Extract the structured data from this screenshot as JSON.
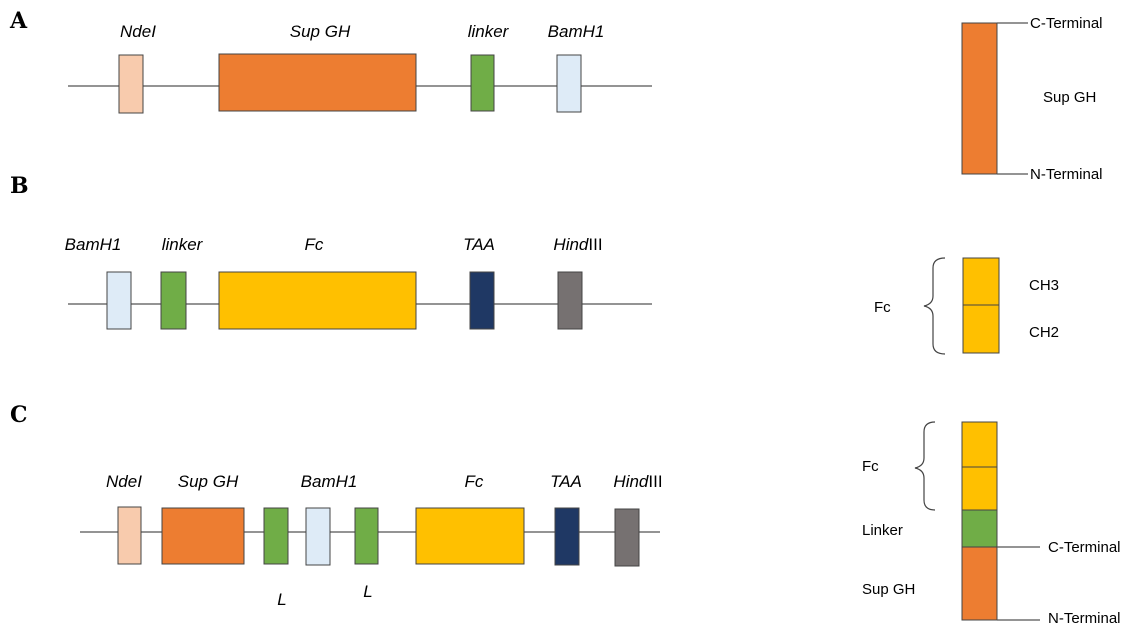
{
  "panels": {
    "A": {
      "letter": "A",
      "elements": [
        {
          "label": "NdeI",
          "color": "#F8CBAD"
        },
        {
          "label": "Sup GH",
          "color": "#ED7D31"
        },
        {
          "label": "linker",
          "color": "#70AD47"
        },
        {
          "label": "BamH1",
          "color": "#DEEBF7"
        }
      ],
      "protein": {
        "c_terminal": "C-Terminal",
        "domain": "Sup GH",
        "n_terminal": "N-Terminal",
        "color": "#ED7D31"
      }
    },
    "B": {
      "letter": "B",
      "elements": [
        {
          "label": "BamH1",
          "color": "#DEEBF7"
        },
        {
          "label": "linker",
          "color": "#70AD47"
        },
        {
          "label": "Fc",
          "color": "#FFC000"
        },
        {
          "label": "TAA",
          "color": "#1F3864"
        },
        {
          "label_italic": "Hind",
          "label_plain": "III",
          "color": "#767171"
        }
      ],
      "protein": {
        "group": "Fc",
        "upper": "CH3",
        "lower": "CH2",
        "color": "#FFC000"
      }
    },
    "C": {
      "letter": "C",
      "elements": [
        {
          "label": "NdeI",
          "color": "#F8CBAD"
        },
        {
          "label": "Sup GH",
          "color": "#ED7D31"
        },
        {
          "label": "L",
          "color": "#70AD47"
        },
        {
          "label": "BamH1",
          "color": "#DEEBF7"
        },
        {
          "label": "L",
          "color": "#70AD47"
        },
        {
          "label": "Fc",
          "color": "#FFC000"
        },
        {
          "label": "TAA",
          "color": "#1F3864"
        },
        {
          "label_italic": "Hind",
          "label_plain": "III",
          "color": "#767171"
        }
      ],
      "protein": {
        "fc": "Fc",
        "linker": "Linker",
        "sup_gh": "Sup GH",
        "c_terminal": "C-Terminal",
        "n_terminal": "N-Terminal",
        "fc_color": "#FFC000",
        "linker_color": "#70AD47",
        "sup_color": "#ED7D31"
      }
    }
  }
}
